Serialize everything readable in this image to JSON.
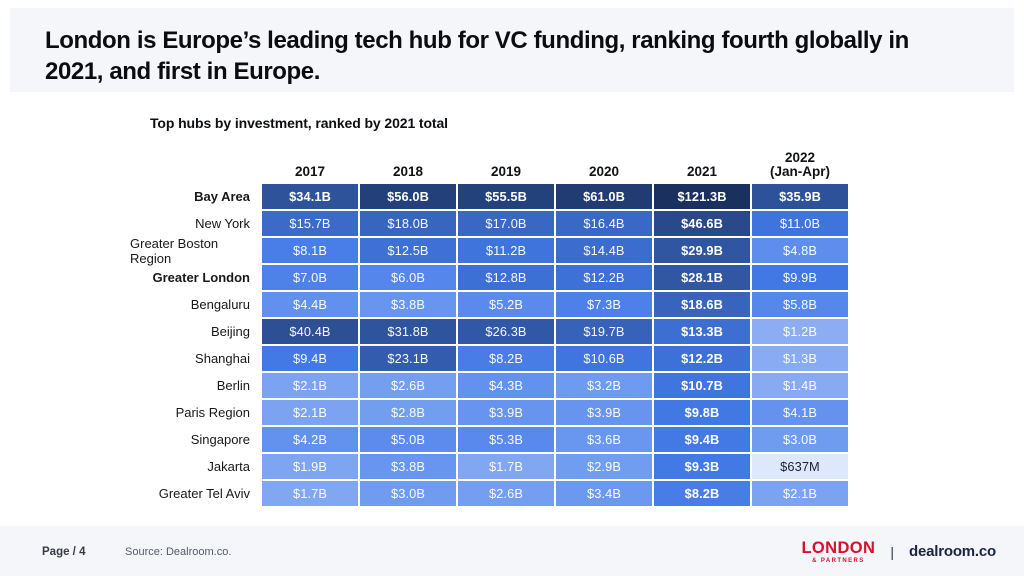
{
  "slide": {
    "title": "London is Europe’s leading tech hub for VC funding, ranking fourth globally in 2021, and first in Europe.",
    "table_title": "Top hubs by investment, ranked by 2021 total"
  },
  "footer": {
    "page_label": "Page / 4",
    "source": "Source: Dealroom.co.",
    "logo_london": "LONDON",
    "logo_london_sub": "& PARTNERS",
    "separator": "|",
    "logo_dealroom": "dealroom.co"
  },
  "colors": {
    "band_bg": "#f4f6fa",
    "logo_red": "#d8102d",
    "logo_navy": "#1b2540",
    "title_text": "#0b0c0e",
    "heat_lightest": "#dde8fb",
    "heat_darkest": "#1a3160"
  },
  "chart_data": {
    "type": "heatmap",
    "title": "Top hubs by investment, ranked by 2021 total",
    "columns": [
      "2017",
      "2018",
      "2019",
      "2020",
      "2021",
      "2022\n(Jan-Apr)"
    ],
    "bold_column": "2021",
    "rows": [
      {
        "label": "Bay Area",
        "bold_label": true,
        "bold_values": true,
        "display": [
          "$34.1B",
          "$56.0B",
          "$55.5B",
          "$61.0B",
          "$121.3B",
          "$35.9B"
        ],
        "values": [
          34.1,
          56.0,
          55.5,
          61.0,
          121.3,
          35.9
        ]
      },
      {
        "label": "New York",
        "bold_label": false,
        "bold_values": false,
        "display": [
          "$15.7B",
          "$18.0B",
          "$17.0B",
          "$16.4B",
          "$46.6B",
          "$11.0B"
        ],
        "values": [
          15.7,
          18.0,
          17.0,
          16.4,
          46.6,
          11.0
        ]
      },
      {
        "label": "Greater Boston Region",
        "bold_label": false,
        "bold_values": false,
        "display": [
          "$8.1B",
          "$12.5B",
          "$11.2B",
          "$14.4B",
          "$29.9B",
          "$4.8B"
        ],
        "values": [
          8.1,
          12.5,
          11.2,
          14.4,
          29.9,
          4.8
        ]
      },
      {
        "label": "Greater London",
        "bold_label": true,
        "bold_values": false,
        "display": [
          "$7.0B",
          "$6.0B",
          "$12.8B",
          "$12.2B",
          "$28.1B",
          "$9.9B"
        ],
        "values": [
          7.0,
          6.0,
          12.8,
          12.2,
          28.1,
          9.9
        ]
      },
      {
        "label": "Bengaluru",
        "bold_label": false,
        "bold_values": false,
        "display": [
          "$4.4B",
          "$3.8B",
          "$5.2B",
          "$7.3B",
          "$18.6B",
          "$5.8B"
        ],
        "values": [
          4.4,
          3.8,
          5.2,
          7.3,
          18.6,
          5.8
        ]
      },
      {
        "label": "Beijing",
        "bold_label": false,
        "bold_values": false,
        "display": [
          "$40.4B",
          "$31.8B",
          "$26.3B",
          "$19.7B",
          "$13.3B",
          "$1.2B"
        ],
        "values": [
          40.4,
          31.8,
          26.3,
          19.7,
          13.3,
          1.2
        ]
      },
      {
        "label": "Shanghai",
        "bold_label": false,
        "bold_values": false,
        "display": [
          "$9.4B",
          "$23.1B",
          "$8.2B",
          "$10.6B",
          "$12.2B",
          "$1.3B"
        ],
        "values": [
          9.4,
          23.1,
          8.2,
          10.6,
          12.2,
          1.3
        ]
      },
      {
        "label": "Berlin",
        "bold_label": false,
        "bold_values": false,
        "display": [
          "$2.1B",
          "$2.6B",
          "$4.3B",
          "$3.2B",
          "$10.7B",
          "$1.4B"
        ],
        "values": [
          2.1,
          2.6,
          4.3,
          3.2,
          10.7,
          1.4
        ]
      },
      {
        "label": "Paris Region",
        "bold_label": false,
        "bold_values": false,
        "display": [
          "$2.1B",
          "$2.8B",
          "$3.9B",
          "$3.9B",
          "$9.8B",
          "$4.1B"
        ],
        "values": [
          2.1,
          2.8,
          3.9,
          3.9,
          9.8,
          4.1
        ]
      },
      {
        "label": "Singapore",
        "bold_label": false,
        "bold_values": false,
        "display": [
          "$4.2B",
          "$5.0B",
          "$5.3B",
          "$3.6B",
          "$9.4B",
          "$3.0B"
        ],
        "values": [
          4.2,
          5.0,
          5.3,
          3.6,
          9.4,
          3.0
        ]
      },
      {
        "label": "Jakarta",
        "bold_label": false,
        "bold_values": false,
        "display": [
          "$1.9B",
          "$3.8B",
          "$1.7B",
          "$2.9B",
          "$9.3B",
          "$637M"
        ],
        "values": [
          1.9,
          3.8,
          1.7,
          2.9,
          9.3,
          0.637
        ]
      },
      {
        "label": "Greater Tel Aviv",
        "bold_label": false,
        "bold_values": false,
        "display": [
          "$1.7B",
          "$3.0B",
          "$2.6B",
          "$3.4B",
          "$8.2B",
          "$2.1B"
        ],
        "values": [
          1.7,
          3.0,
          2.6,
          3.4,
          8.2,
          2.1
        ]
      }
    ],
    "scale": {
      "type": "log",
      "domain": [
        0.637,
        121.3
      ],
      "stops": [
        {
          "t": 0.0,
          "color": "#dde8fb"
        },
        {
          "t": 0.12,
          "color": "#8cadf3"
        },
        {
          "t": 0.3,
          "color": "#6f9cf0"
        },
        {
          "t": 0.4,
          "color": "#5b8aed"
        },
        {
          "t": 0.52,
          "color": "#4178e4"
        },
        {
          "t": 0.62,
          "color": "#3a68c6"
        },
        {
          "t": 0.7,
          "color": "#3259a8"
        },
        {
          "t": 0.8,
          "color": "#2c4e92"
        },
        {
          "t": 0.87,
          "color": "#203c72"
        },
        {
          "t": 1.0,
          "color": "#1a3160"
        }
      ],
      "dark_text_below_t": 0.06
    }
  }
}
